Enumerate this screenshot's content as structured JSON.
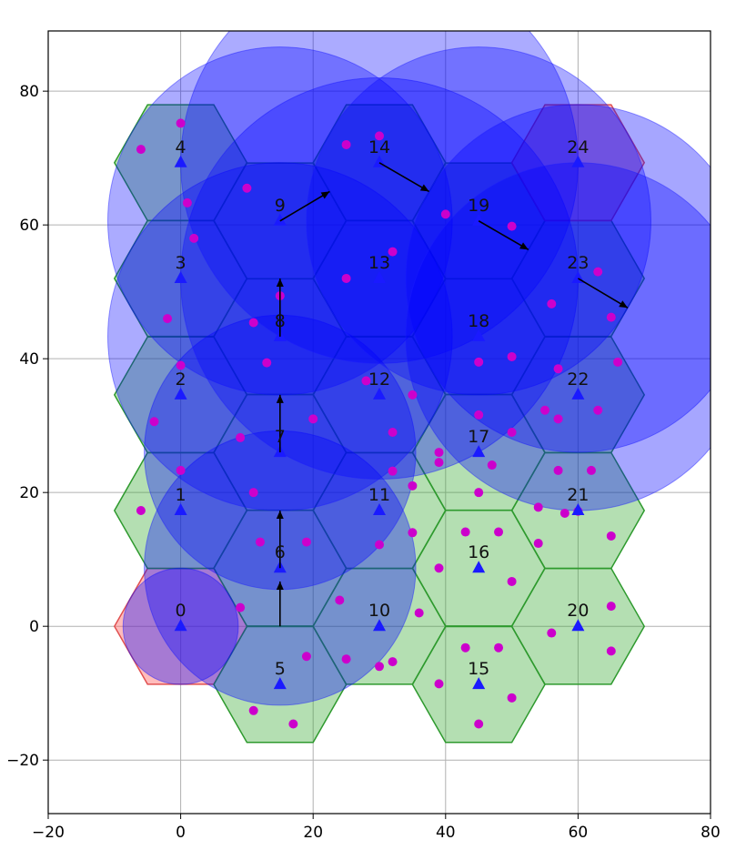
{
  "chart_data": {
    "type": "scatter",
    "title": "",
    "xlabel": "",
    "ylabel": "",
    "xlim": [
      -20,
      80
    ],
    "ylim": [
      -28,
      89
    ],
    "grid": true,
    "x_ticks": [
      -20,
      0,
      20,
      40,
      60,
      80
    ],
    "y_ticks": [
      -20,
      0,
      20,
      40,
      60,
      80
    ],
    "x_tick_labels": [
      "−20",
      "0",
      "20",
      "40",
      "60",
      "80"
    ],
    "y_tick_labels": [
      "−20",
      "0",
      "20",
      "40",
      "60",
      "80"
    ],
    "hex_radius": 10,
    "colors": {
      "grid": "#b0b0b0",
      "hex_green_fill": "#3aaa35",
      "hex_green_edge": "#2e9a2e",
      "hex_red_fill": "#ff6b6b",
      "hex_red_edge": "#e05050",
      "coverage_fill": "#0000ff",
      "coverage_edge": "#1a1aff",
      "user_point": "#cc00cc",
      "base_station": "#1a1aff",
      "arrow": "#000000"
    },
    "cells": [
      {
        "id": "0",
        "x": 0,
        "y": 0,
        "hex_color": "red"
      },
      {
        "id": "1",
        "x": 0,
        "y": 17.3,
        "hex_color": "green"
      },
      {
        "id": "2",
        "x": 0,
        "y": 34.6,
        "hex_color": "green"
      },
      {
        "id": "3",
        "x": 0,
        "y": 52,
        "hex_color": "green"
      },
      {
        "id": "4",
        "x": 0,
        "y": 69.3,
        "hex_color": "green"
      },
      {
        "id": "5",
        "x": 15,
        "y": -8.7,
        "hex_color": "green"
      },
      {
        "id": "6",
        "x": 15,
        "y": 8.7,
        "hex_color": "green"
      },
      {
        "id": "7",
        "x": 15,
        "y": 26,
        "hex_color": "green"
      },
      {
        "id": "8",
        "x": 15,
        "y": 43.3,
        "hex_color": "green"
      },
      {
        "id": "9",
        "x": 15,
        "y": 60.6,
        "hex_color": "green"
      },
      {
        "id": "10",
        "x": 30,
        "y": 0,
        "hex_color": "green"
      },
      {
        "id": "11",
        "x": 30,
        "y": 17.3,
        "hex_color": "green"
      },
      {
        "id": "12",
        "x": 30,
        "y": 34.6,
        "hex_color": "green"
      },
      {
        "id": "13",
        "x": 30,
        "y": 52,
        "hex_color": "green"
      },
      {
        "id": "14",
        "x": 30,
        "y": 69.3,
        "hex_color": "green"
      },
      {
        "id": "15",
        "x": 45,
        "y": -8.7,
        "hex_color": "green"
      },
      {
        "id": "16",
        "x": 45,
        "y": 8.7,
        "hex_color": "green"
      },
      {
        "id": "17",
        "x": 45,
        "y": 26,
        "hex_color": "green"
      },
      {
        "id": "18",
        "x": 45,
        "y": 43.3,
        "hex_color": "green"
      },
      {
        "id": "19",
        "x": 45,
        "y": 60.6,
        "hex_color": "green"
      },
      {
        "id": "20",
        "x": 60,
        "y": 0,
        "hex_color": "green"
      },
      {
        "id": "21",
        "x": 60,
        "y": 17.3,
        "hex_color": "green"
      },
      {
        "id": "22",
        "x": 60,
        "y": 34.6,
        "hex_color": "green"
      },
      {
        "id": "23",
        "x": 60,
        "y": 52,
        "hex_color": "green"
      },
      {
        "id": "24",
        "x": 60,
        "y": 69.3,
        "hex_color": "red"
      }
    ],
    "coverage_circles": [
      {
        "x": 0,
        "y": 0,
        "r": 8.7,
        "alpha": 0.35
      },
      {
        "x": 15,
        "y": 8.7,
        "r": 20.5,
        "alpha": 0.35
      },
      {
        "x": 15,
        "y": 26,
        "r": 20.5,
        "alpha": 0.35
      },
      {
        "x": 15,
        "y": 43.3,
        "r": 26,
        "alpha": 0.33
      },
      {
        "x": 15,
        "y": 60.6,
        "r": 26,
        "alpha": 0.33
      },
      {
        "x": 30,
        "y": 52,
        "r": 30,
        "alpha": 0.33
      },
      {
        "x": 30,
        "y": 69.3,
        "r": 30,
        "alpha": 0.33
      },
      {
        "x": 45,
        "y": 60.6,
        "r": 26,
        "alpha": 0.33
      },
      {
        "x": 60,
        "y": 52,
        "r": 26,
        "alpha": 0.35
      },
      {
        "x": 60,
        "y": 43.3,
        "r": 26,
        "alpha": 0.35
      }
    ],
    "user_points": [
      [
        -6,
        71.3
      ],
      [
        0,
        75.2
      ],
      [
        1,
        63.3
      ],
      [
        2,
        58
      ],
      [
        10,
        65.5
      ],
      [
        25,
        72
      ],
      [
        30,
        73.3
      ],
      [
        40,
        61.6
      ],
      [
        50,
        59.8
      ],
      [
        -2,
        46
      ],
      [
        0,
        39
      ],
      [
        11,
        45.4
      ],
      [
        13,
        39.4
      ],
      [
        15,
        49.4
      ],
      [
        25,
        52
      ],
      [
        32,
        56
      ],
      [
        28,
        36.7
      ],
      [
        35,
        34.6
      ],
      [
        45,
        39.5
      ],
      [
        50,
        40.3
      ],
      [
        56,
        48.2
      ],
      [
        57,
        38.5
      ],
      [
        63,
        53
      ],
      [
        65,
        46.2
      ],
      [
        66,
        39.5
      ],
      [
        45,
        31.6
      ],
      [
        50,
        29
      ],
      [
        55,
        32.3
      ],
      [
        57,
        31
      ],
      [
        63,
        32.3
      ],
      [
        -4,
        30.6
      ],
      [
        0,
        23.3
      ],
      [
        9,
        28.2
      ],
      [
        20,
        31
      ],
      [
        32,
        29
      ],
      [
        39,
        26
      ],
      [
        39,
        24.5
      ],
      [
        47,
        24.1
      ],
      [
        32,
        23.2
      ],
      [
        35,
        21
      ],
      [
        45,
        20
      ],
      [
        57,
        23.3
      ],
      [
        62,
        23.3
      ],
      [
        -6,
        17.3
      ],
      [
        11,
        20
      ],
      [
        54,
        17.8
      ],
      [
        58,
        16.9
      ],
      [
        60,
        17.2
      ],
      [
        12,
        12.6
      ],
      [
        19,
        12.6
      ],
      [
        30,
        12.2
      ],
      [
        35,
        14
      ],
      [
        39,
        8.7
      ],
      [
        43,
        14.1
      ],
      [
        48,
        14.1
      ],
      [
        50,
        6.7
      ],
      [
        54,
        12.4
      ],
      [
        65,
        13.5
      ],
      [
        9,
        2.8
      ],
      [
        24,
        3.9
      ],
      [
        36,
        2
      ],
      [
        56,
        -1
      ],
      [
        65,
        3
      ],
      [
        65,
        -3.7
      ],
      [
        19,
        -4.5
      ],
      [
        25,
        -4.9
      ],
      [
        30,
        -6
      ],
      [
        32,
        -5.3
      ],
      [
        39,
        -8.6
      ],
      [
        43,
        -3.2
      ],
      [
        48,
        -3.2
      ],
      [
        50,
        -10.7
      ],
      [
        11,
        -12.6
      ],
      [
        17,
        -14.6
      ],
      [
        45,
        -14.6
      ]
    ],
    "arrows": [
      {
        "from": [
          15,
          0
        ],
        "to": [
          15,
          6.7
        ]
      },
      {
        "from": [
          15,
          8.7
        ],
        "to": [
          15,
          17.3
        ]
      },
      {
        "from": [
          15,
          26
        ],
        "to": [
          15,
          34.6
        ]
      },
      {
        "from": [
          15,
          43.3
        ],
        "to": [
          15,
          52
        ]
      },
      {
        "from": [
          15,
          60.6
        ],
        "to": [
          22.5,
          65
        ]
      },
      {
        "from": [
          30,
          69.3
        ],
        "to": [
          37.5,
          65
        ]
      },
      {
        "from": [
          45,
          60.6
        ],
        "to": [
          52.5,
          56.3
        ]
      },
      {
        "from": [
          60,
          52
        ],
        "to": [
          67.5,
          47.6
        ]
      }
    ]
  }
}
